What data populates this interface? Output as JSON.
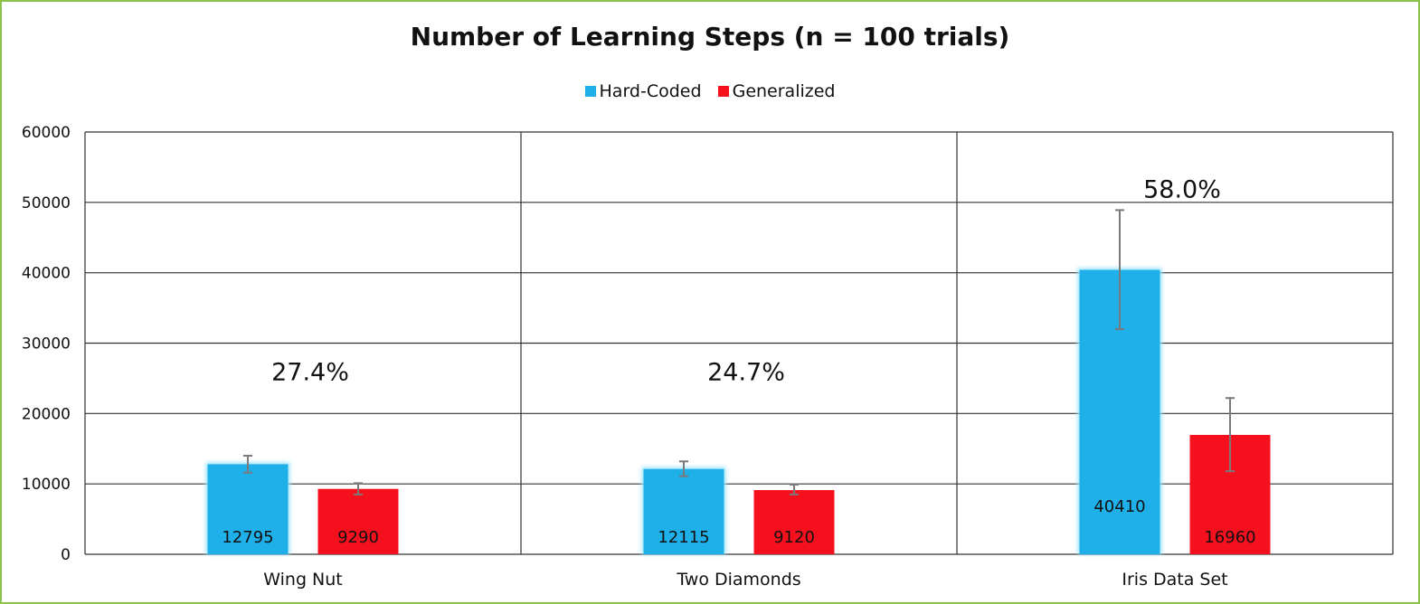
{
  "chart_data": {
    "type": "bar",
    "title": "Number of Learning Steps (n = 100 trials)",
    "categories": [
      "Wing Nut",
      "Two Diamonds",
      "Iris Data Set"
    ],
    "series": [
      {
        "name": "Hard-Coded",
        "color": "#1fb0ea",
        "values": [
          12795,
          12115,
          40410
        ],
        "error_low": [
          11600,
          11100,
          32000
        ],
        "error_high": [
          14000,
          13200,
          48900
        ],
        "labels": [
          "12795",
          "12115",
          "40410"
        ]
      },
      {
        "name": "Generalized",
        "color": "#f5101e",
        "values": [
          9290,
          9120,
          16960
        ],
        "error_low": [
          8500,
          8500,
          11800
        ],
        "error_high": [
          10100,
          9900,
          22200
        ],
        "labels": [
          "9290",
          "9120",
          "16960"
        ]
      }
    ],
    "annotations": [
      {
        "category": "Wing Nut",
        "text": "27.4%",
        "y": 26000
      },
      {
        "category": "Two Diamonds",
        "text": "24.7%",
        "y": 26000
      },
      {
        "category": "Iris Data Set",
        "text": "58.0%",
        "y": 52000
      }
    ],
    "ylim": [
      0,
      60000
    ],
    "yticks": [
      "0",
      "10000",
      "20000",
      "30000",
      "40000",
      "50000",
      "60000"
    ],
    "grid": true,
    "legend_position": "top",
    "xlabel": "",
    "ylabel": ""
  }
}
